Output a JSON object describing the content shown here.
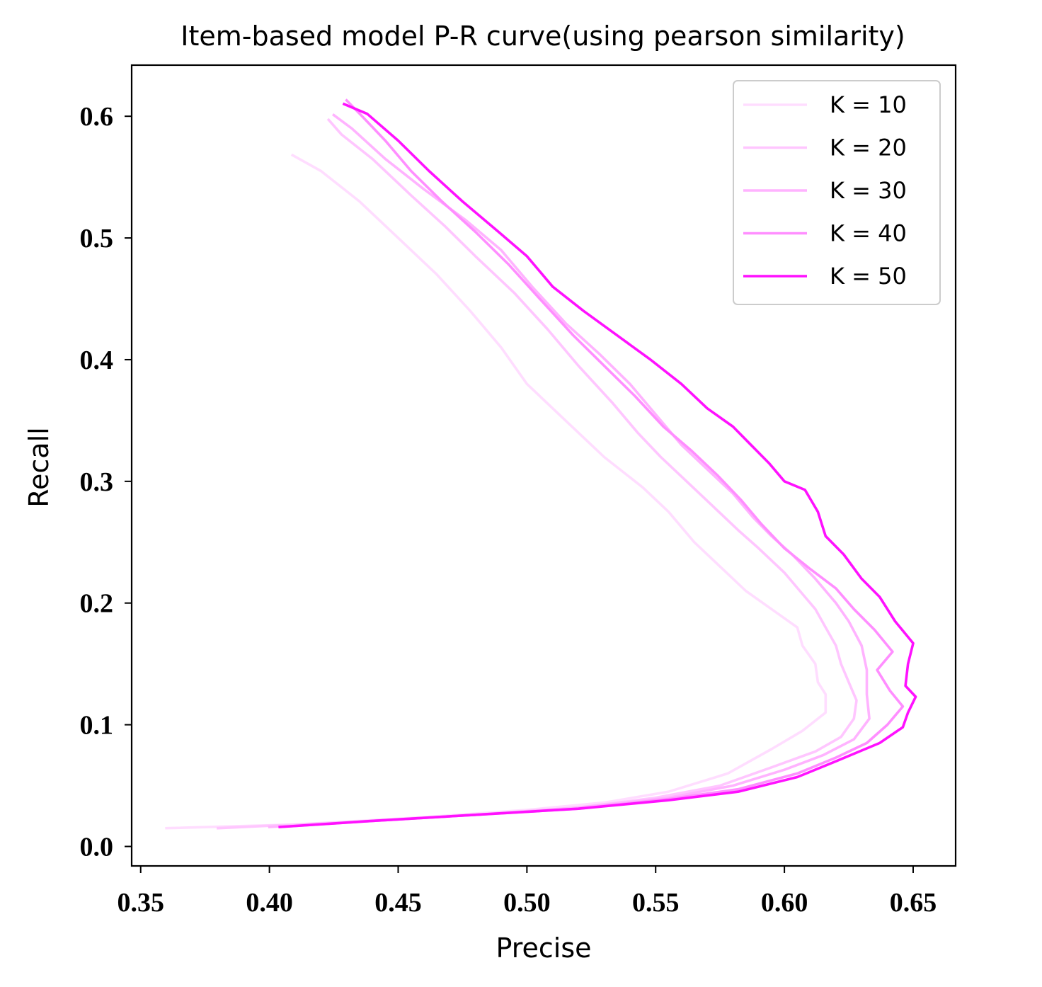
{
  "chart_data": {
    "type": "line",
    "title": "Item-based model P-R curve(using pearson similarity)",
    "xlabel": "Precise",
    "ylabel": "Recall",
    "xlim": [
      0.3465,
      0.6665
    ],
    "ylim": [
      -0.016,
      0.642
    ],
    "xticks": [
      0.35,
      0.4,
      0.45,
      0.5,
      0.55,
      0.6,
      0.65
    ],
    "xtick_labels": [
      "0.35",
      "0.40",
      "0.45",
      "0.50",
      "0.55",
      "0.60",
      "0.65"
    ],
    "yticks": [
      0.0,
      0.1,
      0.2,
      0.3,
      0.4,
      0.5,
      0.6
    ],
    "ytick_labels": [
      "0.0",
      "0.1",
      "0.2",
      "0.3",
      "0.4",
      "0.5",
      "0.6"
    ],
    "grid": false,
    "legend_position": "top-right",
    "series": [
      {
        "name": "K = 10",
        "color": "#ffddff",
        "points": [
          [
            0.36,
            0.015
          ],
          [
            0.41,
            0.018
          ],
          [
            0.46,
            0.024
          ],
          [
            0.5,
            0.03
          ],
          [
            0.53,
            0.036
          ],
          [
            0.555,
            0.045
          ],
          [
            0.578,
            0.06
          ],
          [
            0.595,
            0.08
          ],
          [
            0.607,
            0.095
          ],
          [
            0.616,
            0.11
          ],
          [
            0.616,
            0.125
          ],
          [
            0.613,
            0.135
          ],
          [
            0.612,
            0.15
          ],
          [
            0.607,
            0.165
          ],
          [
            0.605,
            0.18
          ],
          [
            0.595,
            0.195
          ],
          [
            0.585,
            0.21
          ],
          [
            0.575,
            0.23
          ],
          [
            0.565,
            0.25
          ],
          [
            0.555,
            0.275
          ],
          [
            0.545,
            0.295
          ],
          [
            0.53,
            0.32
          ],
          [
            0.515,
            0.35
          ],
          [
            0.5,
            0.38
          ],
          [
            0.49,
            0.41
          ],
          [
            0.478,
            0.44
          ],
          [
            0.465,
            0.47
          ],
          [
            0.45,
            0.5
          ],
          [
            0.435,
            0.53
          ],
          [
            0.42,
            0.555
          ],
          [
            0.409,
            0.568
          ]
        ]
      },
      {
        "name": "K = 20",
        "color": "#ffc6ff",
        "points": [
          [
            0.38,
            0.015
          ],
          [
            0.43,
            0.02
          ],
          [
            0.48,
            0.026
          ],
          [
            0.52,
            0.032
          ],
          [
            0.55,
            0.04
          ],
          [
            0.575,
            0.05
          ],
          [
            0.595,
            0.065
          ],
          [
            0.612,
            0.078
          ],
          [
            0.622,
            0.09
          ],
          [
            0.627,
            0.105
          ],
          [
            0.628,
            0.12
          ],
          [
            0.625,
            0.135
          ],
          [
            0.622,
            0.15
          ],
          [
            0.62,
            0.165
          ],
          [
            0.616,
            0.18
          ],
          [
            0.612,
            0.195
          ],
          [
            0.606,
            0.21
          ],
          [
            0.6,
            0.225
          ],
          [
            0.59,
            0.245
          ],
          [
            0.582,
            0.26
          ],
          [
            0.572,
            0.28
          ],
          [
            0.562,
            0.3
          ],
          [
            0.552,
            0.32
          ],
          [
            0.543,
            0.34
          ],
          [
            0.533,
            0.365
          ],
          [
            0.52,
            0.395
          ],
          [
            0.508,
            0.425
          ],
          [
            0.495,
            0.455
          ],
          [
            0.48,
            0.485
          ],
          [
            0.468,
            0.51
          ],
          [
            0.455,
            0.535
          ],
          [
            0.44,
            0.565
          ],
          [
            0.428,
            0.585
          ],
          [
            0.423,
            0.597
          ]
        ]
      },
      {
        "name": "K = 30",
        "color": "#ffb3ff",
        "points": [
          [
            0.4,
            0.016
          ],
          [
            0.44,
            0.021
          ],
          [
            0.48,
            0.026
          ],
          [
            0.52,
            0.032
          ],
          [
            0.555,
            0.04
          ],
          [
            0.58,
            0.05
          ],
          [
            0.6,
            0.063
          ],
          [
            0.615,
            0.075
          ],
          [
            0.627,
            0.088
          ],
          [
            0.633,
            0.105
          ],
          [
            0.632,
            0.125
          ],
          [
            0.632,
            0.145
          ],
          [
            0.63,
            0.165
          ],
          [
            0.625,
            0.185
          ],
          [
            0.62,
            0.2
          ],
          [
            0.612,
            0.22
          ],
          [
            0.603,
            0.24
          ],
          [
            0.595,
            0.255
          ],
          [
            0.588,
            0.27
          ],
          [
            0.58,
            0.29
          ],
          [
            0.57,
            0.31
          ],
          [
            0.56,
            0.33
          ],
          [
            0.55,
            0.355
          ],
          [
            0.54,
            0.38
          ],
          [
            0.528,
            0.405
          ],
          [
            0.515,
            0.43
          ],
          [
            0.502,
            0.46
          ],
          [
            0.49,
            0.49
          ],
          [
            0.476,
            0.515
          ],
          [
            0.46,
            0.54
          ],
          [
            0.445,
            0.565
          ],
          [
            0.432,
            0.59
          ],
          [
            0.425,
            0.601
          ]
        ]
      },
      {
        "name": "K = 40",
        "color": "#ff8eff",
        "points": [
          [
            0.404,
            0.016
          ],
          [
            0.44,
            0.021
          ],
          [
            0.48,
            0.026
          ],
          [
            0.52,
            0.031
          ],
          [
            0.555,
            0.039
          ],
          [
            0.582,
            0.047
          ],
          [
            0.605,
            0.06
          ],
          [
            0.62,
            0.073
          ],
          [
            0.632,
            0.085
          ],
          [
            0.64,
            0.1
          ],
          [
            0.646,
            0.115
          ],
          [
            0.641,
            0.128
          ],
          [
            0.636,
            0.145
          ],
          [
            0.642,
            0.16
          ],
          [
            0.635,
            0.178
          ],
          [
            0.627,
            0.195
          ],
          [
            0.62,
            0.212
          ],
          [
            0.61,
            0.228
          ],
          [
            0.6,
            0.245
          ],
          [
            0.591,
            0.265
          ],
          [
            0.583,
            0.285
          ],
          [
            0.574,
            0.305
          ],
          [
            0.564,
            0.325
          ],
          [
            0.553,
            0.345
          ],
          [
            0.542,
            0.37
          ],
          [
            0.53,
            0.395
          ],
          [
            0.518,
            0.42
          ],
          [
            0.505,
            0.45
          ],
          [
            0.493,
            0.478
          ],
          [
            0.48,
            0.505
          ],
          [
            0.467,
            0.53
          ],
          [
            0.455,
            0.555
          ],
          [
            0.445,
            0.58
          ],
          [
            0.436,
            0.6
          ],
          [
            0.43,
            0.613
          ]
        ]
      },
      {
        "name": "K = 50",
        "color": "#ff11ff",
        "points": [
          [
            0.404,
            0.016
          ],
          [
            0.44,
            0.021
          ],
          [
            0.48,
            0.026
          ],
          [
            0.52,
            0.031
          ],
          [
            0.555,
            0.038
          ],
          [
            0.582,
            0.045
          ],
          [
            0.605,
            0.057
          ],
          [
            0.62,
            0.07
          ],
          [
            0.637,
            0.085
          ],
          [
            0.646,
            0.098
          ],
          [
            0.648,
            0.11
          ],
          [
            0.651,
            0.123
          ],
          [
            0.647,
            0.132
          ],
          [
            0.648,
            0.15
          ],
          [
            0.65,
            0.167
          ],
          [
            0.643,
            0.185
          ],
          [
            0.637,
            0.205
          ],
          [
            0.63,
            0.22
          ],
          [
            0.623,
            0.24
          ],
          [
            0.616,
            0.255
          ],
          [
            0.613,
            0.275
          ],
          [
            0.608,
            0.293
          ],
          [
            0.6,
            0.3
          ],
          [
            0.594,
            0.315
          ],
          [
            0.587,
            0.33
          ],
          [
            0.58,
            0.345
          ],
          [
            0.57,
            0.36
          ],
          [
            0.56,
            0.38
          ],
          [
            0.548,
            0.4
          ],
          [
            0.535,
            0.42
          ],
          [
            0.522,
            0.44
          ],
          [
            0.51,
            0.46
          ],
          [
            0.5,
            0.485
          ],
          [
            0.489,
            0.505
          ],
          [
            0.475,
            0.53
          ],
          [
            0.462,
            0.555
          ],
          [
            0.45,
            0.58
          ],
          [
            0.438,
            0.602
          ],
          [
            0.429,
            0.61
          ]
        ]
      }
    ]
  }
}
